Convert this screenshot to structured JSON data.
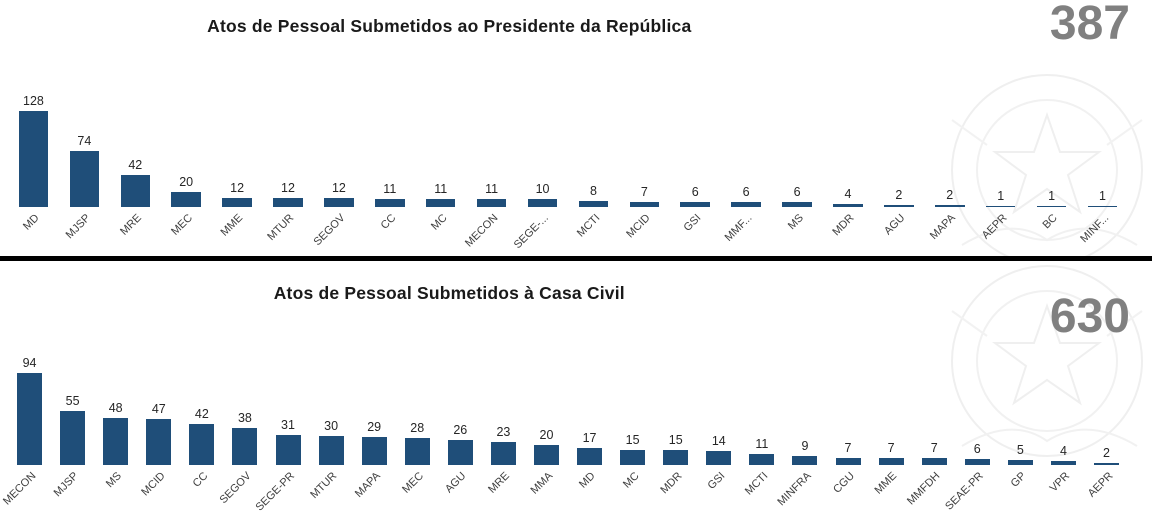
{
  "chart_data": [
    {
      "type": "bar",
      "title": "Atos de Pessoal Submetidos ao Presidente da República",
      "total_label": "387",
      "categories": [
        "MD",
        "MJSP",
        "MRE",
        "MEC",
        "MME",
        "MTUR",
        "SEGOV",
        "CC",
        "MC",
        "MECON",
        "SEGE-...",
        "MCTI",
        "MCID",
        "GSI",
        "MMF...",
        "MS",
        "MDR",
        "AGU",
        "MAPA",
        "AEPR",
        "BC",
        "MINF..."
      ],
      "values": [
        128,
        74,
        42,
        20,
        12,
        12,
        12,
        11,
        11,
        11,
        10,
        8,
        7,
        6,
        6,
        6,
        4,
        2,
        2,
        1,
        1,
        1
      ],
      "bar_color": "#1F4E79",
      "ylim": [
        0,
        128
      ],
      "grid": false,
      "legend": "none",
      "data_labels": "above-bars"
    },
    {
      "type": "bar",
      "title": "Atos de Pessoal Submetidos à Casa Civil",
      "total_label": "630",
      "categories": [
        "MECON",
        "MJSP",
        "MS",
        "MCID",
        "CC",
        "SEGOV",
        "SEGE-PR",
        "MTUR",
        "MAPA",
        "MEC",
        "AGU",
        "MRE",
        "MMA",
        "MD",
        "MC",
        "MDR",
        "GSI",
        "MCTI",
        "MINFRA",
        "CGU",
        "MME",
        "MMFDH",
        "SEAE-PR",
        "GP",
        "VPR",
        "AEPR"
      ],
      "values": [
        94,
        55,
        48,
        47,
        42,
        38,
        31,
        30,
        29,
        28,
        26,
        23,
        20,
        17,
        15,
        15,
        14,
        11,
        9,
        7,
        7,
        7,
        6,
        5,
        4,
        2
      ],
      "bar_color": "#1F4E79",
      "ylim": [
        0,
        94
      ],
      "grid": false,
      "legend": "none",
      "data_labels": "above-bars"
    }
  ],
  "colors": {
    "bar": "#1F4E79",
    "total_number": "#808080",
    "title_text": "#1a1a1a",
    "value_label": "#262626",
    "category_label": "#404040",
    "divider": "#000000",
    "watermark": "#eeeeee"
  }
}
